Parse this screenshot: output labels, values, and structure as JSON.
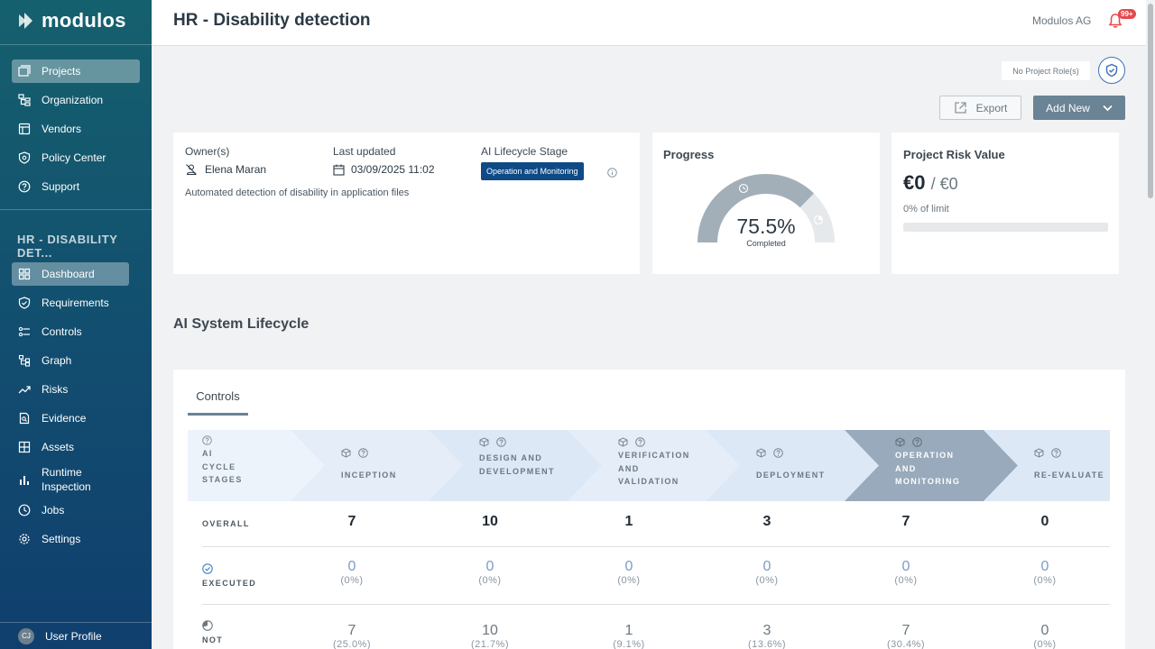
{
  "app": {
    "logo_text": "modulos"
  },
  "sidebar": {
    "main_items": [
      {
        "label": "Projects",
        "icon": "projects-icon"
      },
      {
        "label": "Organization",
        "icon": "organization-icon"
      },
      {
        "label": "Vendors",
        "icon": "vendors-icon"
      },
      {
        "label": "Policy Center",
        "icon": "policy-icon"
      },
      {
        "label": "Support",
        "icon": "support-icon"
      }
    ],
    "section_title": "HR - DISABILITY DET...",
    "project_items": [
      {
        "label": "Dashboard",
        "icon": "dashboard-icon"
      },
      {
        "label": "Requirements",
        "icon": "requirements-icon"
      },
      {
        "label": "Controls",
        "icon": "controls-icon"
      },
      {
        "label": "Graph",
        "icon": "graph-icon"
      },
      {
        "label": "Risks",
        "icon": "risks-icon"
      },
      {
        "label": "Evidence",
        "icon": "evidence-icon"
      },
      {
        "label": "Assets",
        "icon": "assets-icon"
      },
      {
        "label": "Runtime Inspection",
        "icon": "runtime-icon"
      },
      {
        "label": "Jobs",
        "icon": "jobs-icon"
      },
      {
        "label": "Settings",
        "icon": "settings-icon"
      }
    ],
    "collapse_label": "«",
    "user": {
      "initials": "CJ",
      "label": "User Profile"
    }
  },
  "header": {
    "title": "HR - Disability detection",
    "company": "Modulos AG",
    "notification_badge": "99+"
  },
  "toolbar": {
    "role_chip": "No Project Role(s)",
    "export_label": "Export",
    "add_new_label": "Add New"
  },
  "overview": {
    "owner_label": "Owner(s)",
    "owner_name": "Elena Maran",
    "updated_label": "Last updated",
    "updated_value": "03/09/2025 11:02",
    "stage_label": "AI Lifecycle Stage",
    "stage_value": "Operation and Monitoring",
    "description": "Automated detection of disability in application files"
  },
  "progress": {
    "title": "Progress",
    "percent_text": "75.5%",
    "percent": 75.5,
    "sub_label": "Completed"
  },
  "risk": {
    "title": "Project Risk Value",
    "value": "€0",
    "limit_value": "/ €0",
    "limit_text": "0% of limit",
    "fill_fraction": 0
  },
  "lifecycle": {
    "section_title": "AI System Lifecycle",
    "tab_label": "Controls",
    "stages_header": "AI CYCLE STAGES",
    "stages": [
      {
        "label": "INCEPTION"
      },
      {
        "label": "DESIGN AND DEVELOPMENT"
      },
      {
        "label": "VERIFICATION AND VALIDATION"
      },
      {
        "label": "DEPLOYMENT"
      },
      {
        "label": "OPERATION AND MONITORING",
        "active": true
      },
      {
        "label": "RE-EVALUATE"
      }
    ],
    "rows": {
      "overall": {
        "label": "OVERALL",
        "values": [
          "7",
          "10",
          "1",
          "3",
          "7",
          "0"
        ]
      },
      "executed": {
        "label": "EXECUTED",
        "values": [
          "0",
          "0",
          "0",
          "0",
          "0",
          "0"
        ],
        "pcts": [
          "(0%)",
          "(0%)",
          "(0%)",
          "(0%)",
          "(0%)",
          "(0%)"
        ]
      },
      "not": {
        "label": "NOT",
        "values": [
          "7",
          "10",
          "1",
          "3",
          "7",
          "0"
        ],
        "pcts": [
          "(25.0%)",
          "(21.7%)",
          "(9.1%)",
          "(13.6%)",
          "(30.4%)",
          "(0%)"
        ]
      }
    }
  },
  "colors": {
    "sidebar_top": "#15606e",
    "sidebar_bottom": "#103f6e",
    "accent": "#6a8395",
    "stage_tag": "#0f4a86",
    "active_stage": "#98aabb"
  }
}
